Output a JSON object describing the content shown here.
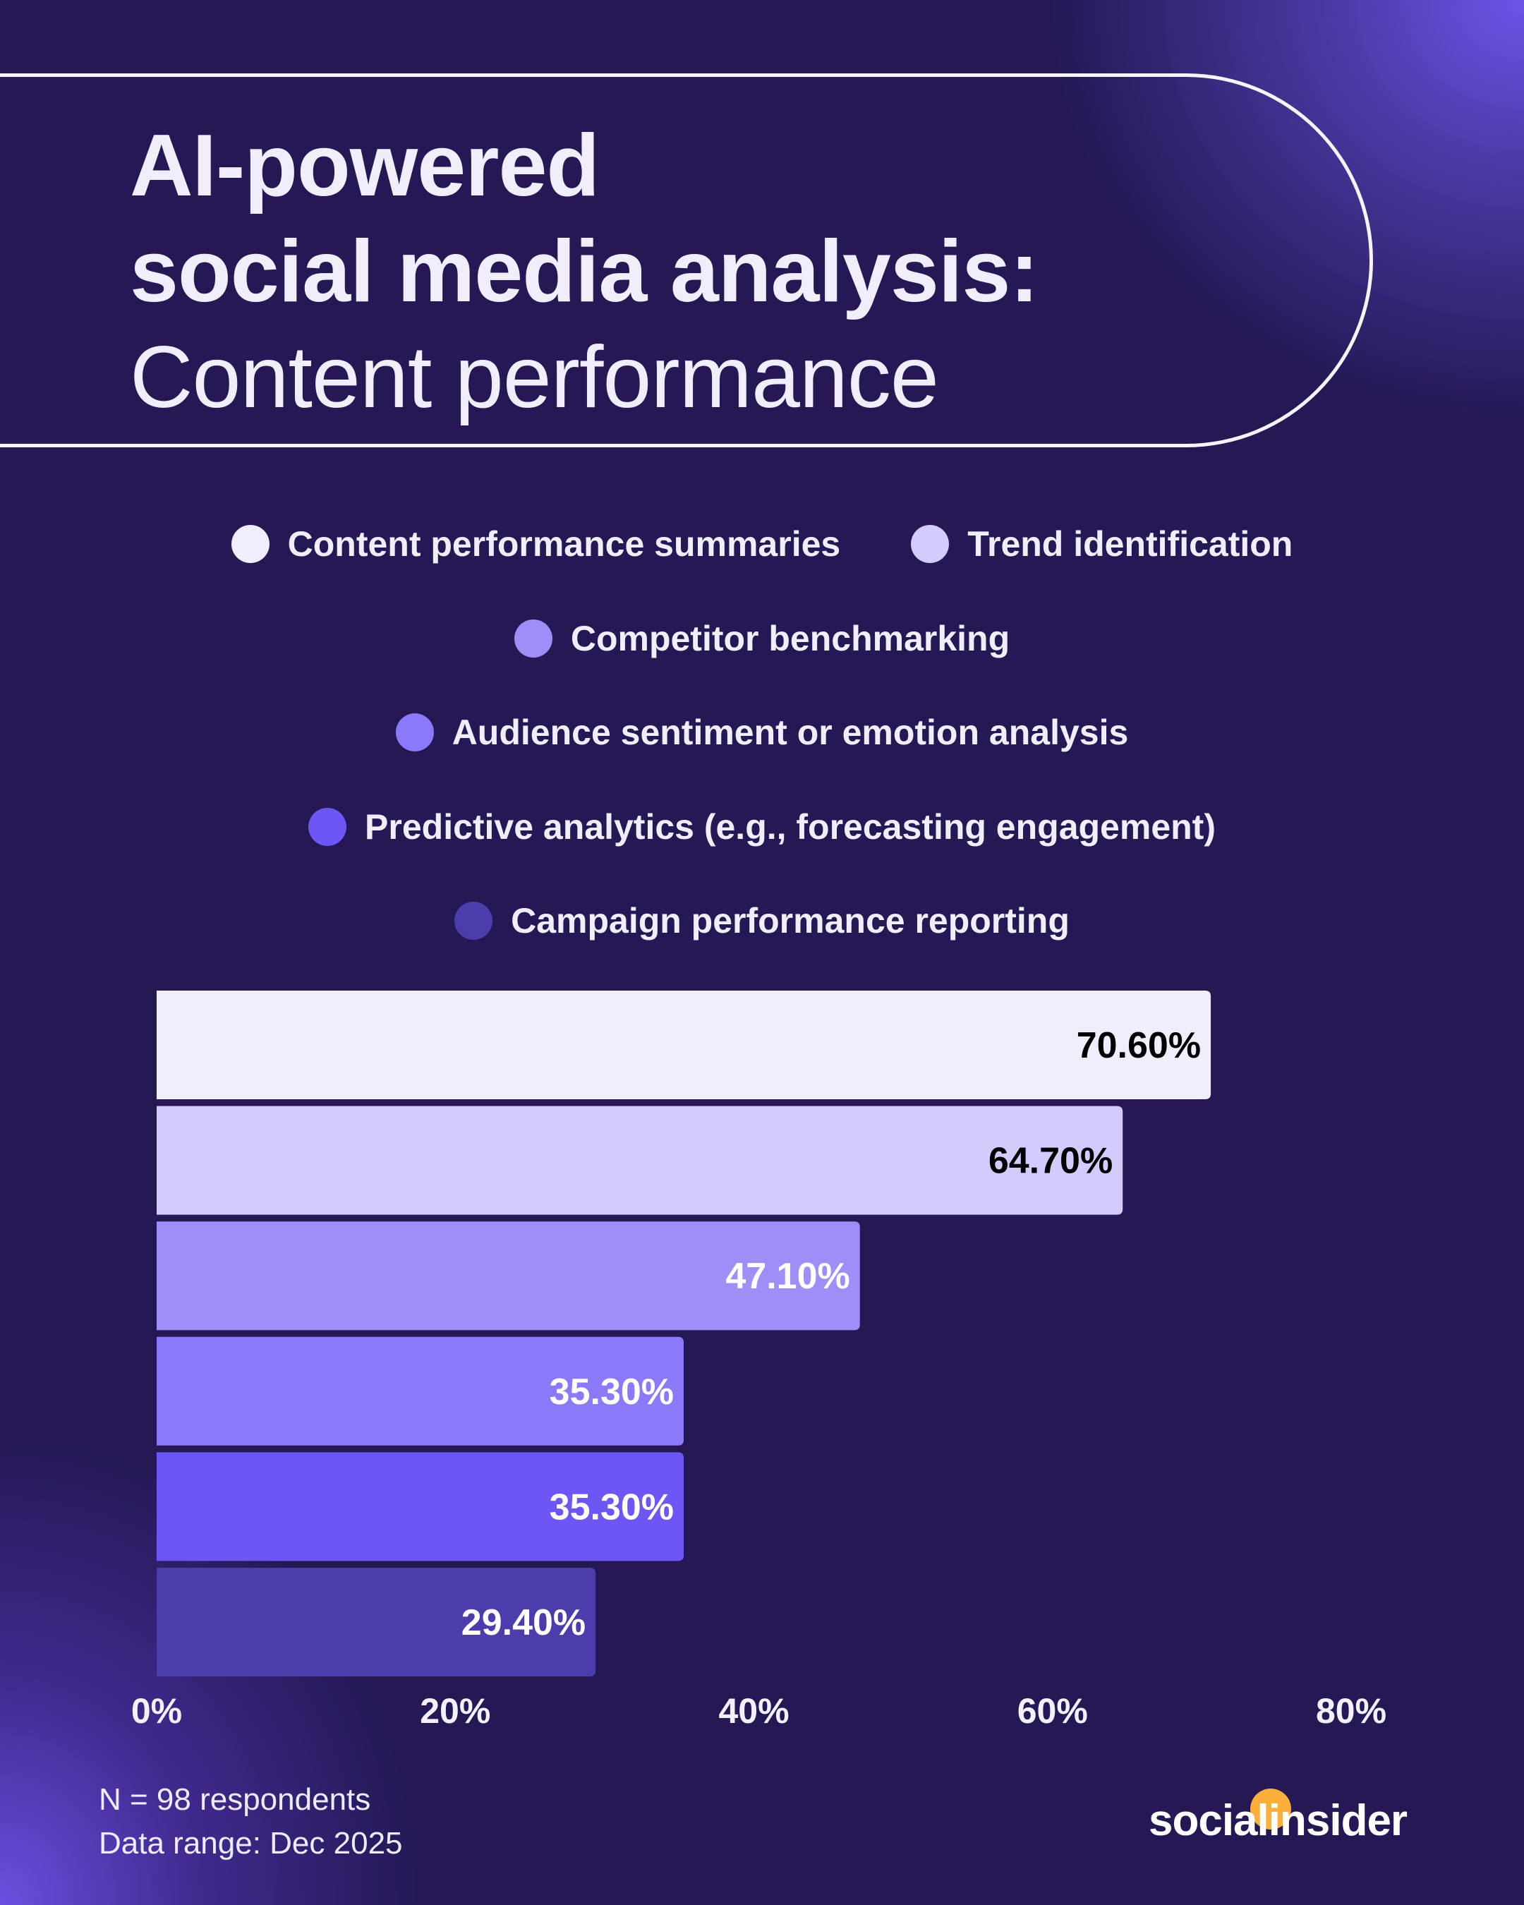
{
  "title": {
    "line1": "AI-powered",
    "line2": "social media analysis:",
    "line3": "Content performance"
  },
  "chart_data": {
    "type": "bar",
    "orientation": "horizontal",
    "categories": [
      "Content performance summaries",
      "Trend identification",
      "Competitor benchmarking",
      "Audience sentiment or emotion analysis",
      "Predictive analytics (e.g., forecasting engagement)",
      "Campaign performance reporting"
    ],
    "values": [
      70.6,
      64.7,
      47.1,
      35.3,
      35.3,
      29.4
    ],
    "data_labels": [
      "70.60%",
      "64.70%",
      "47.10%",
      "35.30%",
      "35.30%",
      "29.40%"
    ],
    "colors": [
      "#f0eefd",
      "#d3cbfb",
      "#9e8ef8",
      "#8a79f8",
      "#6c57f6",
      "#4b3dab"
    ],
    "label_colors": [
      "#000000",
      "#000000",
      "#ffffff",
      "#ffffff",
      "#ffffff",
      "#ffffff"
    ],
    "xlim": [
      0,
      80
    ],
    "x_ticks": [
      "0%",
      "20%",
      "40%",
      "60%",
      "80%"
    ],
    "grid": false,
    "legend_position": "top"
  },
  "footer": {
    "sample": "N = 98 respondents",
    "range": "Data range: Dec 2025"
  },
  "logo": {
    "text": "socialinsider",
    "accent": "#fbb03b"
  }
}
